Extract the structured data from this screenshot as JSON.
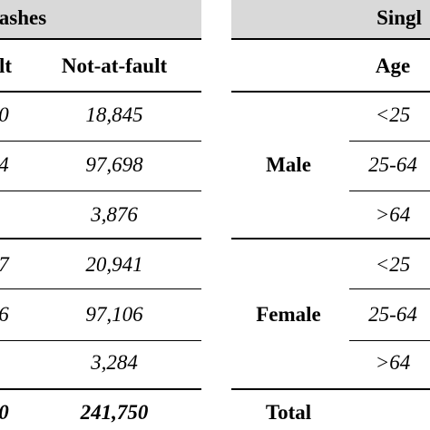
{
  "left": {
    "header": "ashes",
    "columns": [
      "lt",
      "Not-at-fault"
    ],
    "rows": [
      {
        "at_fault": "0",
        "not_at_fault": "18,845"
      },
      {
        "at_fault": "4",
        "not_at_fault": "97,698"
      },
      {
        "not_at_fault": "3,876"
      },
      {
        "at_fault": "7",
        "not_at_fault": "20,941"
      },
      {
        "at_fault": "6",
        "not_at_fault": "97,106"
      },
      {
        "not_at_fault": "3,284"
      }
    ],
    "total": {
      "at_fault": "0",
      "not_at_fault": "241,750"
    }
  },
  "right": {
    "header": "Singl",
    "columns": [
      "Age"
    ],
    "groups": [
      {
        "label": "Male",
        "ages": [
          "<25",
          "25-64",
          ">64"
        ]
      },
      {
        "label": "Female",
        "ages": [
          "<25",
          "25-64",
          ">64"
        ]
      }
    ],
    "total": "Total"
  }
}
